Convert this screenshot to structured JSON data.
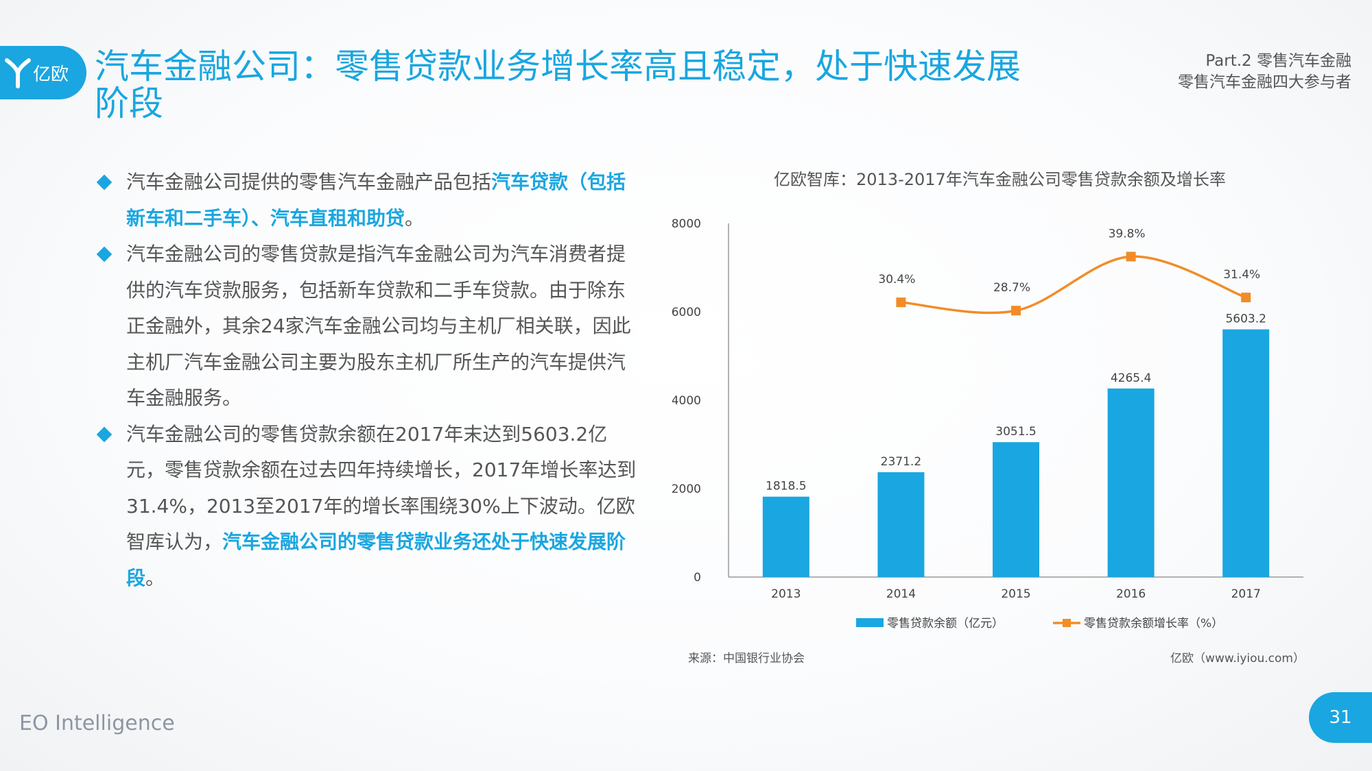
{
  "header": {
    "logo_text": "亿欧",
    "title": "汽车金融公司：零售贷款业务增长率高且稳定，处于快速发展阶段",
    "part_line1": "Part.2 零售汽车金融",
    "part_line2": "零售汽车金融四大参与者"
  },
  "bullets": [
    {
      "segments": [
        {
          "text": "汽车金融公司提供的零售汽车金融产品包括",
          "hl": false
        },
        {
          "text": "汽车贷款（包括新车和二手车）、汽车直租和助贷",
          "hl": true
        },
        {
          "text": "。",
          "hl": false
        }
      ]
    },
    {
      "segments": [
        {
          "text": "汽车金融公司的零售贷款是指汽车金融公司为汽车消费者提供的汽车贷款服务，包括新车贷款和二手车贷款。由于除东正金融外，其余24家汽车金融公司均与主机厂相关联，因此主机厂汽车金融公司主要为股东主机厂所生产的汽车提供汽车金融服务。",
          "hl": false
        }
      ]
    },
    {
      "segments": [
        {
          "text": "汽车金融公司的零售贷款余额在2017年末达到5603.2亿元，零售贷款余额在过去四年持续增长，2017年增长率达到31.4%，2013至2017年的增长率围绕30%上下波动。亿欧智库认为，",
          "hl": false
        },
        {
          "text": "汽车金融公司的零售贷款业务还处于快速发展阶段",
          "hl": true
        },
        {
          "text": "。",
          "hl": false
        }
      ]
    }
  ],
  "chart_data": {
    "type": "bar",
    "title": "亿欧智库：2013-2017年汽车金融公司零售贷款余额及增长率",
    "categories": [
      "2013",
      "2014",
      "2015",
      "2016",
      "2017"
    ],
    "ylim": [
      0,
      8000
    ],
    "yticks": [
      "0",
      "2000",
      "4000",
      "6000",
      "8000"
    ],
    "bar_color": "#1aa6e0",
    "line_color": "#f28c28",
    "legend_position": "bottom",
    "series": [
      {
        "name": "零售贷款余额（亿元）",
        "type": "bar",
        "values": [
          1818.5,
          2371.2,
          3051.5,
          4265.4,
          5603.2
        ],
        "labels": [
          "1818.5",
          "2371.2",
          "3051.5",
          "4265.4",
          "5603.2"
        ]
      },
      {
        "name": "零售贷款余额增长率（%）",
        "type": "line",
        "x": [
          "2014",
          "2015",
          "2016",
          "2017"
        ],
        "values": [
          30.4,
          28.7,
          39.8,
          31.4
        ],
        "labels": [
          "30.4%",
          "28.7%",
          "39.8%",
          "31.4%"
        ]
      }
    ]
  },
  "footer": {
    "source": "来源：中国银行业协会",
    "site": "亿欧（www.iyiou.com）",
    "brand": "EO Intelligence",
    "page": "31"
  }
}
